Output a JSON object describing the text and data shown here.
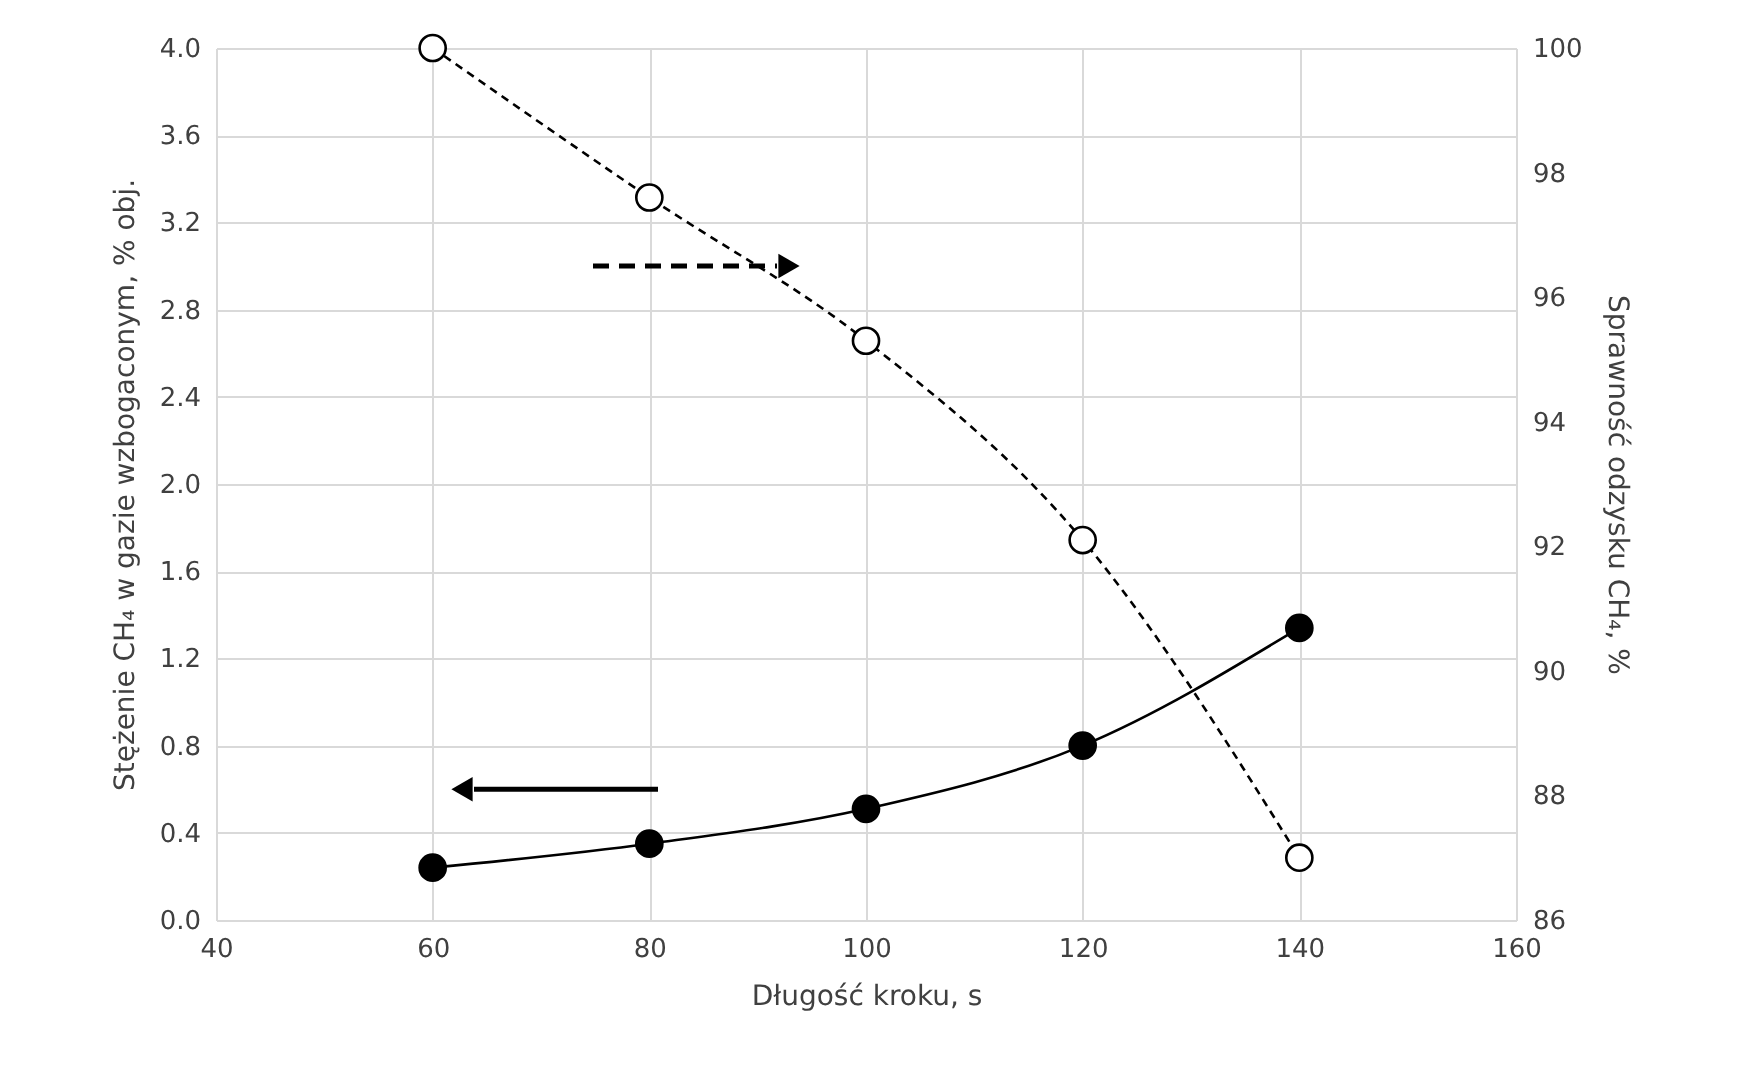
{
  "chart_data": {
    "type": "line",
    "xlabel": "Długość kroku, s",
    "ylabel": "Stężenie CH₄ w gazie wzbogaconym, % obj.",
    "y2label": "Sprawność odzysku CH₄, %",
    "x": [
      60,
      80,
      100,
      120,
      140
    ],
    "series": [
      {
        "color": "#000000",
        "values": [
          0.24,
          0.35,
          0.51,
          0.8,
          1.34
        ],
        "marker": "circle",
        "line_style": "solid"
      },
      {
        "color": "#000000",
        "values": [
          100,
          97.6,
          95.3,
          92.1,
          87.0
        ],
        "marker": "circle",
        "line_style": "dashed",
        "axis": "y2"
      }
    ],
    "xlim": [
      40,
      160
    ],
    "xticks": [
      40,
      60,
      80,
      100,
      120,
      140,
      160
    ],
    "ylim": [
      0,
      4
    ],
    "yticks": [
      {
        "value": 0,
        "label": "0.0"
      },
      0.4,
      0.8,
      1.2,
      1.6,
      {
        "value": 2,
        "label": "2.0"
      },
      2.4,
      2.8,
      3.2,
      3.6,
      {
        "value": 4,
        "label": "4.0"
      }
    ],
    "y2lim": [
      86,
      100
    ],
    "y2ticks": [
      86,
      88,
      90,
      92,
      94,
      96,
      98,
      100
    ],
    "grid": true
  }
}
